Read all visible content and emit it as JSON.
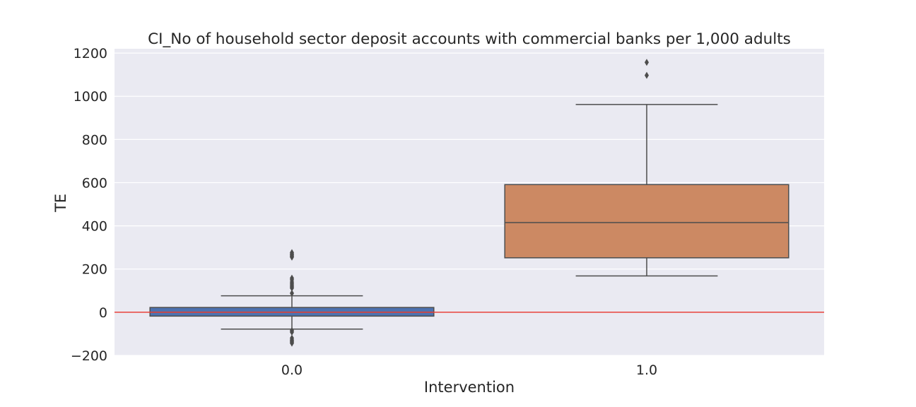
{
  "chart_data": {
    "type": "box",
    "title": "CI_No of household sector deposit accounts with commercial banks per 1,000 adults",
    "xlabel": "Intervention",
    "ylabel": "TE",
    "ylim": [
      -200,
      1220
    ],
    "yticks": [
      -200,
      0,
      200,
      400,
      600,
      800,
      1000,
      1200
    ],
    "ytick_labels": [
      "−200",
      "0",
      "200",
      "400",
      "600",
      "800",
      "1000",
      "1200"
    ],
    "categories": [
      "0.0",
      "1.0"
    ],
    "boxes": [
      {
        "category": "0.0",
        "whisker_low": -78,
        "q1": -18,
        "median": 0,
        "q3": 22,
        "whisker_high": 76,
        "outliers": [
          -85,
          -92,
          -120,
          -128,
          -133,
          -138,
          -143,
          88,
          112,
          118,
          125,
          132,
          140,
          150,
          158,
          255,
          260,
          265,
          270,
          276
        ],
        "color": "#4c72b0"
      },
      {
        "category": "1.0",
        "whisker_low": 168,
        "q1": 252,
        "median": 415,
        "q3": 591,
        "whisker_high": 962,
        "outliers": [
          1097,
          1157
        ],
        "color": "#cc8963"
      }
    ],
    "reference_line": {
      "y": 0,
      "color": "#e8403a"
    },
    "grid": true,
    "background": "#eaeaf2",
    "line_color": "#4d4d4d"
  }
}
